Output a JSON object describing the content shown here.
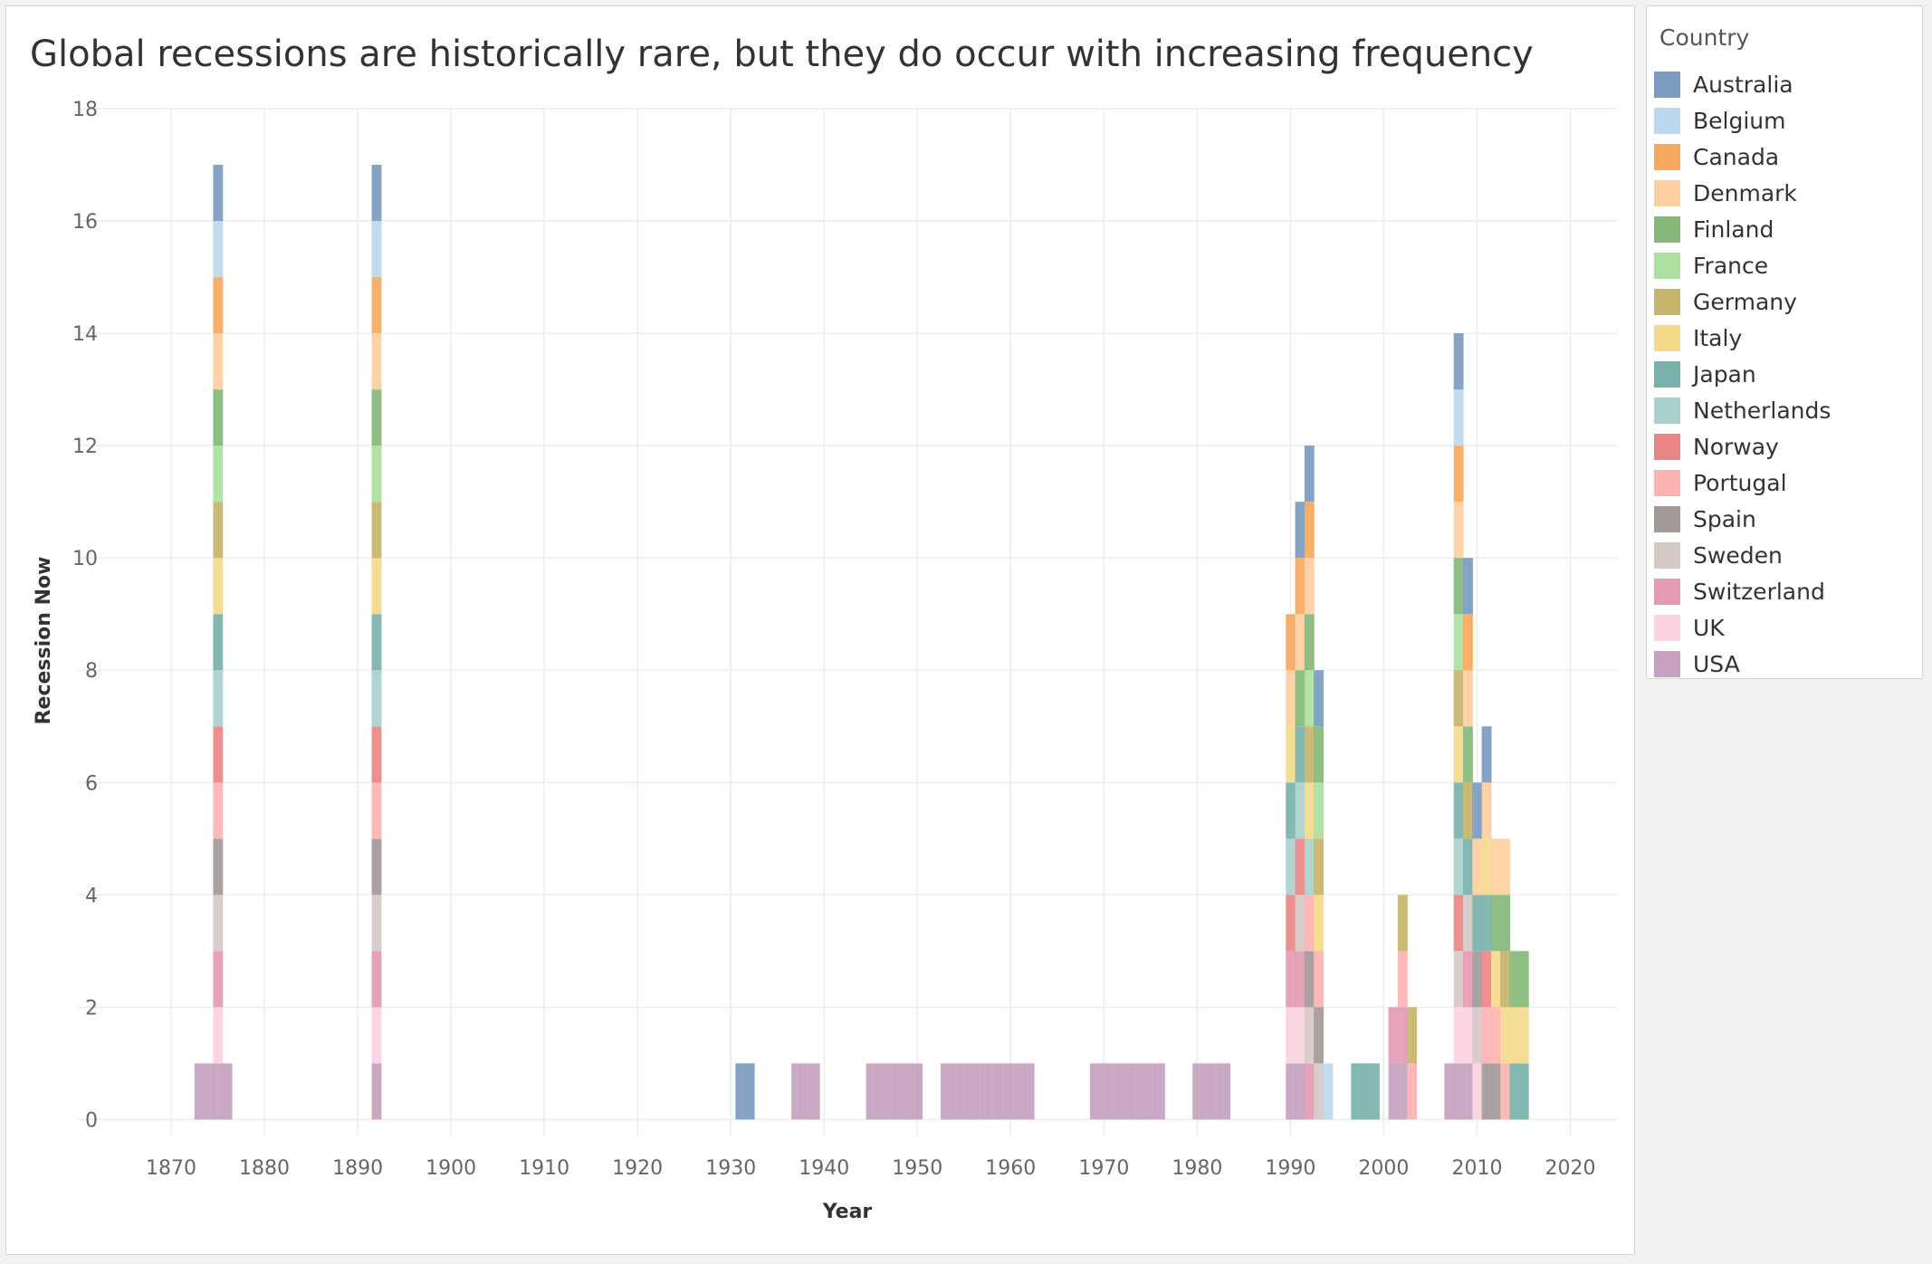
{
  "title": "Global recessions are historically rare, but they do occur with increasing frequency",
  "legend": {
    "title": "Country",
    "items": [
      {
        "name": "Australia",
        "color": "#7b9cc0"
      },
      {
        "name": "Belgium",
        "color": "#bcd8ee"
      },
      {
        "name": "Canada",
        "color": "#f6a95e"
      },
      {
        "name": "Denmark",
        "color": "#fdcfa0"
      },
      {
        "name": "Finland",
        "color": "#86b879"
      },
      {
        "name": "France",
        "color": "#addfa0"
      },
      {
        "name": "Germany",
        "color": "#c6b46b"
      },
      {
        "name": "Italy",
        "color": "#f4d98b"
      },
      {
        "name": "Japan",
        "color": "#79b2ad"
      },
      {
        "name": "Netherlands",
        "color": "#a9d0cc"
      },
      {
        "name": "Norway",
        "color": "#ea8585"
      },
      {
        "name": "Portugal",
        "color": "#fbb3b1"
      },
      {
        "name": "Spain",
        "color": "#a39a98"
      },
      {
        "name": "Sweden",
        "color": "#d5c9c5"
      },
      {
        "name": "Switzerland",
        "color": "#e49ab4"
      },
      {
        "name": "UK",
        "color": "#fbd3df"
      },
      {
        "name": "USA",
        "color": "#c6a2c0"
      }
    ]
  },
  "chart_data": {
    "type": "bar",
    "stacked": true,
    "title": "Global recessions are historically rare, but they do occur with increasing frequency",
    "xlabel": "Year",
    "ylabel": "Recession Now",
    "xlim": [
      1860,
      2025
    ],
    "ylim": [
      -0.3,
      18
    ],
    "x_ticks": [
      1870,
      1880,
      1890,
      1900,
      1910,
      1920,
      1930,
      1940,
      1950,
      1960,
      1970,
      1980,
      1990,
      2000,
      2010,
      2020
    ],
    "y_ticks": [
      0,
      2,
      4,
      6,
      8,
      10,
      12,
      14,
      16,
      18
    ],
    "grid": true,
    "legend_position": "right",
    "series": [
      {
        "name": "Australia",
        "points": [
          [
            1875,
            1
          ],
          [
            1892,
            1
          ],
          [
            1931,
            1
          ],
          [
            1932,
            1
          ],
          [
            1991,
            1
          ],
          [
            1992,
            1
          ],
          [
            1993,
            1
          ],
          [
            2008,
            1
          ],
          [
            2009,
            1
          ],
          [
            2010,
            1
          ],
          [
            2011,
            1
          ]
        ]
      },
      {
        "name": "Belgium",
        "points": [
          [
            1875,
            1
          ],
          [
            1892,
            1
          ],
          [
            1994,
            1
          ],
          [
            2008,
            1
          ]
        ]
      },
      {
        "name": "Canada",
        "points": [
          [
            1875,
            1
          ],
          [
            1892,
            1
          ],
          [
            1990,
            1
          ],
          [
            1991,
            1
          ],
          [
            1992,
            1
          ],
          [
            2008,
            1
          ],
          [
            2009,
            1
          ]
        ]
      },
      {
        "name": "Denmark",
        "points": [
          [
            1875,
            1
          ],
          [
            1892,
            1
          ],
          [
            1990,
            1
          ],
          [
            1991,
            1
          ],
          [
            1992,
            1
          ],
          [
            2008,
            1
          ],
          [
            2009,
            1
          ],
          [
            2010,
            1
          ],
          [
            2011,
            1
          ],
          [
            2012,
            1
          ],
          [
            2013,
            1
          ]
        ]
      },
      {
        "name": "Finland",
        "points": [
          [
            1875,
            1
          ],
          [
            1892,
            1
          ],
          [
            1991,
            1
          ],
          [
            1992,
            1
          ],
          [
            1993,
            1
          ],
          [
            2008,
            1
          ],
          [
            2009,
            1
          ],
          [
            2012,
            1
          ],
          [
            2013,
            1
          ],
          [
            2014,
            1
          ],
          [
            2015,
            1
          ]
        ]
      },
      {
        "name": "France",
        "points": [
          [
            1875,
            1
          ],
          [
            1892,
            1
          ],
          [
            1992,
            1
          ],
          [
            1993,
            1
          ],
          [
            2008,
            1
          ]
        ]
      },
      {
        "name": "Germany",
        "points": [
          [
            1875,
            1
          ],
          [
            1892,
            1
          ],
          [
            1992,
            1
          ],
          [
            1993,
            1
          ],
          [
            2002,
            1
          ],
          [
            2003,
            1
          ],
          [
            2008,
            1
          ],
          [
            2009,
            1
          ],
          [
            2013,
            1
          ]
        ]
      },
      {
        "name": "Italy",
        "points": [
          [
            1875,
            1
          ],
          [
            1892,
            1
          ],
          [
            1990,
            1
          ],
          [
            1992,
            1
          ],
          [
            1993,
            1
          ],
          [
            2008,
            1
          ],
          [
            2011,
            1
          ],
          [
            2012,
            1
          ],
          [
            2013,
            1
          ],
          [
            2014,
            1
          ],
          [
            2015,
            1
          ]
        ]
      },
      {
        "name": "Japan",
        "points": [
          [
            1875,
            1
          ],
          [
            1892,
            1
          ],
          [
            1990,
            1
          ],
          [
            1991,
            1
          ],
          [
            1997,
            1
          ],
          [
            1998,
            1
          ],
          [
            1999,
            1
          ],
          [
            2008,
            1
          ],
          [
            2009,
            1
          ],
          [
            2010,
            1
          ],
          [
            2011,
            1
          ],
          [
            2014,
            1
          ],
          [
            2015,
            1
          ]
        ]
      },
      {
        "name": "Netherlands",
        "points": [
          [
            1875,
            1
          ],
          [
            1892,
            1
          ],
          [
            1990,
            1
          ],
          [
            1991,
            1
          ],
          [
            1992,
            1
          ],
          [
            2008,
            1
          ]
        ]
      },
      {
        "name": "Norway",
        "points": [
          [
            1875,
            1
          ],
          [
            1892,
            1
          ],
          [
            1990,
            1
          ],
          [
            1991,
            1
          ],
          [
            2008,
            1
          ],
          [
            2011,
            1
          ]
        ]
      },
      {
        "name": "Portugal",
        "points": [
          [
            1875,
            1
          ],
          [
            1892,
            1
          ],
          [
            1992,
            1
          ],
          [
            1993,
            1
          ],
          [
            2002,
            1
          ],
          [
            2003,
            1
          ],
          [
            2011,
            1
          ],
          [
            2012,
            1
          ],
          [
            2013,
            1
          ]
        ]
      },
      {
        "name": "Spain",
        "points": [
          [
            1875,
            1
          ],
          [
            1892,
            1
          ],
          [
            1992,
            1
          ],
          [
            1993,
            1
          ],
          [
            2010,
            1
          ],
          [
            2011,
            1
          ],
          [
            2012,
            1
          ]
        ]
      },
      {
        "name": "Sweden",
        "points": [
          [
            1875,
            1
          ],
          [
            1892,
            1
          ],
          [
            1991,
            1
          ],
          [
            1992,
            1
          ],
          [
            1993,
            1
          ],
          [
            2008,
            1
          ],
          [
            2009,
            1
          ],
          [
            2010,
            1
          ]
        ]
      },
      {
        "name": "Switzerland",
        "points": [
          [
            1875,
            1
          ],
          [
            1892,
            1
          ],
          [
            1990,
            1
          ],
          [
            1991,
            1
          ],
          [
            1992,
            1
          ],
          [
            2001,
            1
          ],
          [
            2002,
            1
          ],
          [
            2009,
            1
          ]
        ]
      },
      {
        "name": "UK",
        "points": [
          [
            1875,
            1
          ],
          [
            1892,
            1
          ],
          [
            1990,
            1
          ],
          [
            1991,
            1
          ],
          [
            2008,
            1
          ],
          [
            2009,
            1
          ],
          [
            2010,
            1
          ]
        ]
      },
      {
        "name": "USA",
        "points": [
          [
            1873,
            1
          ],
          [
            1874,
            1
          ],
          [
            1875,
            1
          ],
          [
            1876,
            1
          ],
          [
            1892,
            1
          ],
          [
            1937,
            1
          ],
          [
            1938,
            1
          ],
          [
            1939,
            1
          ],
          [
            1945,
            1
          ],
          [
            1946,
            1
          ],
          [
            1947,
            1
          ],
          [
            1948,
            1
          ],
          [
            1949,
            1
          ],
          [
            1950,
            1
          ],
          [
            1953,
            1
          ],
          [
            1954,
            1
          ],
          [
            1955,
            1
          ],
          [
            1956,
            1
          ],
          [
            1957,
            1
          ],
          [
            1958,
            1
          ],
          [
            1959,
            1
          ],
          [
            1960,
            1
          ],
          [
            1961,
            1
          ],
          [
            1962,
            1
          ],
          [
            1969,
            1
          ],
          [
            1970,
            1
          ],
          [
            1971,
            1
          ],
          [
            1972,
            1
          ],
          [
            1973,
            1
          ],
          [
            1974,
            1
          ],
          [
            1975,
            1
          ],
          [
            1976,
            1
          ],
          [
            1980,
            1
          ],
          [
            1981,
            1
          ],
          [
            1982,
            1
          ],
          [
            1983,
            1
          ],
          [
            1990,
            1
          ],
          [
            1991,
            1
          ],
          [
            2001,
            1
          ],
          [
            2002,
            1
          ],
          [
            2007,
            1
          ],
          [
            2008,
            1
          ],
          [
            2009,
            1
          ]
        ]
      }
    ]
  }
}
